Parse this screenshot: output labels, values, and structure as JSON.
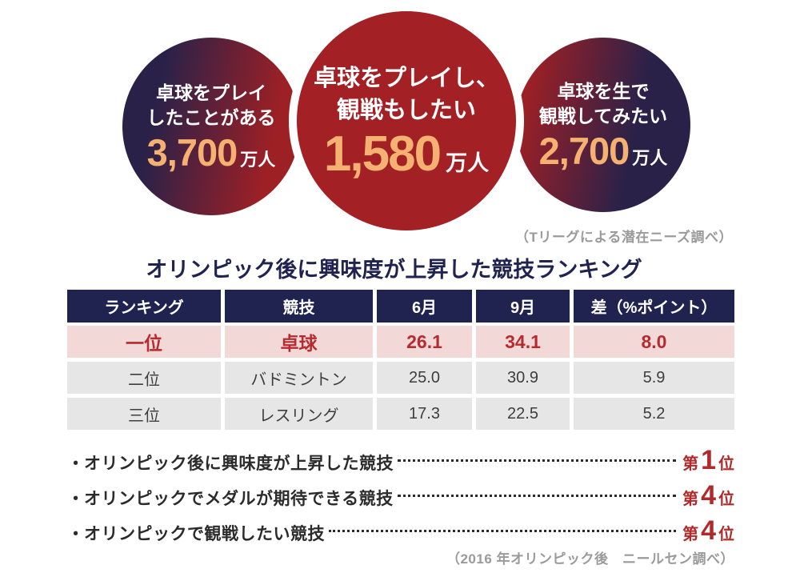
{
  "colors": {
    "navy": "#20234F",
    "circle_navy": "#2A2149",
    "circle_red": "#9D2025",
    "center_red": "#A32025",
    "orange": "#F5B171",
    "pink_bg": "#F3D8D8",
    "pink_text": "#B52B2F",
    "gray_bg": "#E6E6E6",
    "gray_text": "#3E3E3E",
    "caption_gray": "#9A9A9A",
    "bullet_text": "#2B2B2B",
    "rank_red": "#B02A2B"
  },
  "circles": [
    {
      "line1": "卓球をプレイ",
      "line2": "したことがある",
      "value": "3,700",
      "unit": "万人"
    },
    {
      "line1": "卓球をプレイし、",
      "line2": "観戦もしたい",
      "value": "1,580",
      "unit": "万人"
    },
    {
      "line1": "卓球を生で",
      "line2": "観戦してみたい",
      "value": "2,700",
      "unit": "万人"
    }
  ],
  "source_top": "（Tリーグによる潜在ニーズ調べ）",
  "ranking": {
    "title": "オリンピック後に興味度が上昇した競技ランキング",
    "headers": [
      "ランキング",
      "競技",
      "6月",
      "9月",
      "差（%ポイント）"
    ],
    "rows": [
      {
        "rank": "一位",
        "sport": "卓球",
        "june": "26.1",
        "september": "34.1",
        "diff": "8.0"
      },
      {
        "rank": "二位",
        "sport": "バドミントン",
        "june": "25.0",
        "september": "30.9",
        "diff": "5.9"
      },
      {
        "rank": "三位",
        "sport": "レスリング",
        "june": "17.3",
        "september": "22.5",
        "diff": "5.2"
      }
    ]
  },
  "bullets": {
    "marker": "・",
    "items": [
      {
        "label": "オリンピック後に興味度が上昇した競技",
        "rank_prefix": "第",
        "rank_number": "1",
        "rank_suffix": "位"
      },
      {
        "label": "オリンピックでメダルが期待できる競技",
        "rank_prefix": "第",
        "rank_number": "4",
        "rank_suffix": "位"
      },
      {
        "label": "オリンピックで観戦したい競技",
        "rank_prefix": "第",
        "rank_number": "4",
        "rank_suffix": "位"
      }
    ]
  },
  "source_bottom": "（2016 年オリンピック後　ニールセン調べ）",
  "chart_data": [
    {
      "type": "bar",
      "categories": [
        "卓球をプレイしたことがある",
        "卓球をプレイし、観戦もしたい",
        "卓球を生で観戦してみたい"
      ],
      "values": [
        3700,
        1580,
        2700
      ],
      "title": "",
      "xlabel": "",
      "ylabel": "万人",
      "annotation": "（Tリーグによる潜在ニーズ調べ）"
    },
    {
      "type": "table",
      "title": "オリンピック後に興味度が上昇した競技ランキング",
      "columns": [
        "ランキング",
        "競技",
        "6月",
        "9月",
        "差（%ポイント）"
      ],
      "rows": [
        [
          "一位",
          "卓球",
          26.1,
          34.1,
          8.0
        ],
        [
          "二位",
          "バドミントン",
          25.0,
          30.9,
          5.9
        ],
        [
          "三位",
          "レスリング",
          17.3,
          22.5,
          5.2
        ]
      ],
      "annotation": "（2016 年オリンピック後　ニールセン調べ）"
    }
  ]
}
